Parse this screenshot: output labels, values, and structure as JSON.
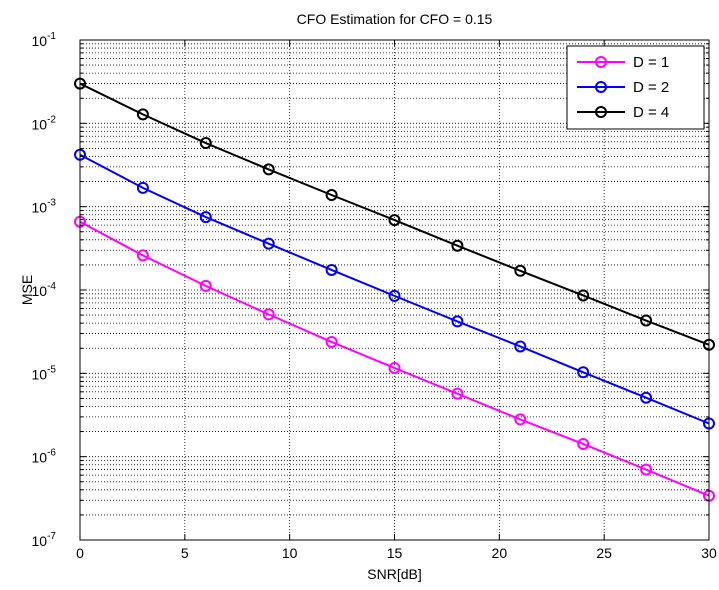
{
  "chart_data": {
    "type": "line",
    "title": "CFO Estimation for CFO = 0.15",
    "xlabel": "SNR[dB]",
    "ylabel": "MSE",
    "xlim": [
      0,
      30
    ],
    "ylim": [
      1e-07,
      0.1
    ],
    "yscale": "log",
    "grid": true,
    "legend_position": "top-right",
    "x_ticks": [
      0,
      5,
      10,
      15,
      20,
      25,
      30
    ],
    "y_tick_exponents": [
      -1,
      -2,
      -3,
      -4,
      -5,
      -6,
      -7
    ],
    "y_tick_base": "10",
    "x": [
      0,
      3,
      6,
      9,
      12,
      15,
      18,
      21,
      24,
      27,
      30
    ],
    "series": [
      {
        "name": "D = 1",
        "color": "#ff00ff",
        "values": [
          0.00066,
          0.00026,
          0.000112,
          5.1e-05,
          2.38e-05,
          1.16e-05,
          5.7e-06,
          2.8e-06,
          1.42e-06,
          7e-07,
          3.4e-07
        ]
      },
      {
        "name": "D = 2",
        "color": "#0000ff",
        "values": [
          0.0042,
          0.00168,
          0.00075,
          0.00036,
          0.000174,
          8.5e-05,
          4.2e-05,
          2.1e-05,
          1.03e-05,
          5.1e-06,
          2.5e-06
        ]
      },
      {
        "name": "D = 4",
        "color": "#000000",
        "values": [
          0.03,
          0.0128,
          0.0058,
          0.0028,
          0.00138,
          0.00069,
          0.00034,
          0.00017,
          8.6e-05,
          4.3e-05,
          2.2e-05
        ]
      }
    ]
  }
}
